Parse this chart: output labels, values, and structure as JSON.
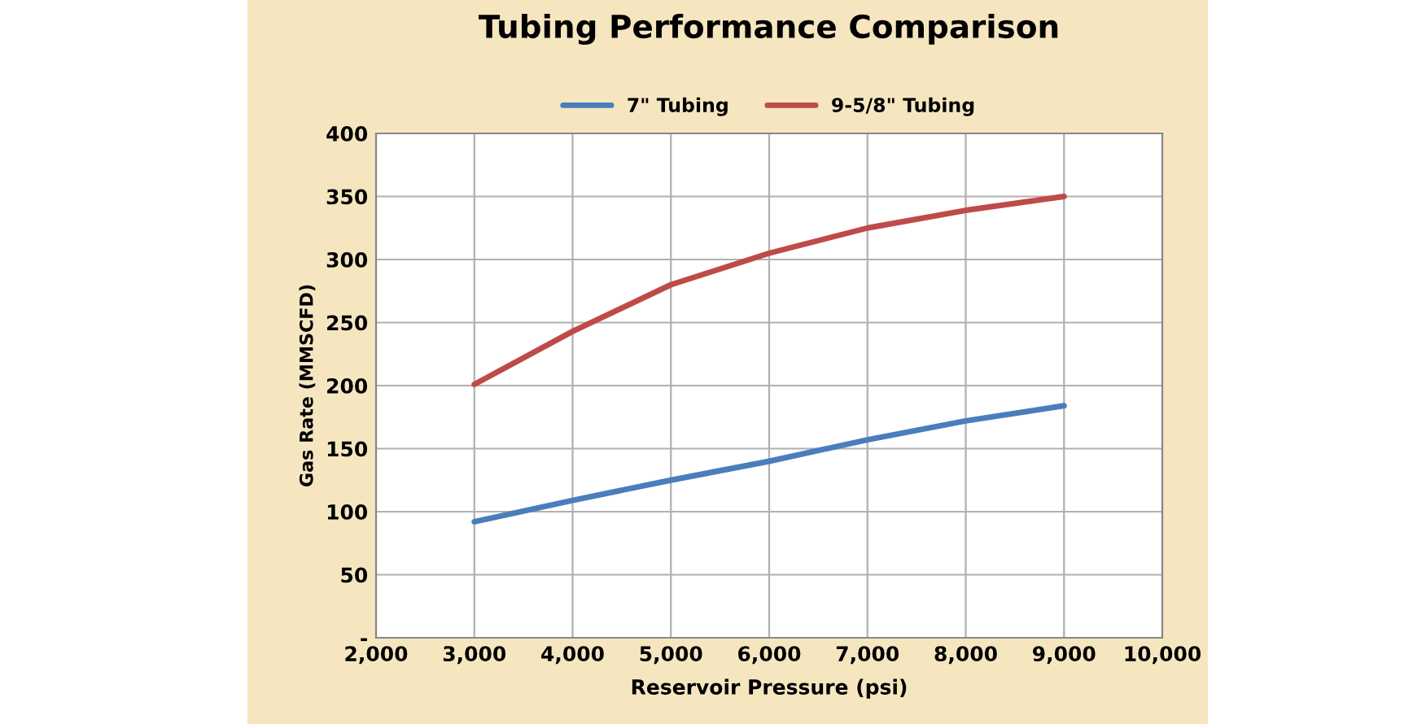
{
  "chart_data": {
    "type": "line",
    "title": "Tubing Performance Comparison",
    "xlabel": "Reservoir Pressure (psi)",
    "ylabel": "Gas Rate (MMSCFD)",
    "x": [
      3000,
      4000,
      5000,
      6000,
      7000,
      8000,
      9000
    ],
    "series": [
      {
        "name": "7\" Tubing",
        "color": "#4a7ebb",
        "values": [
          92,
          109,
          125,
          140,
          157,
          172,
          184
        ]
      },
      {
        "name": "9-5/8\" Tubing",
        "color": "#be4b48",
        "values": [
          201,
          243,
          280,
          305,
          325,
          339,
          350
        ]
      }
    ],
    "xlim": [
      2000,
      10000
    ],
    "xticks": [
      {
        "value": 2000,
        "label": "2,000"
      },
      {
        "value": 3000,
        "label": "3,000"
      },
      {
        "value": 4000,
        "label": "4,000"
      },
      {
        "value": 5000,
        "label": "5,000"
      },
      {
        "value": 6000,
        "label": "6,000"
      },
      {
        "value": 7000,
        "label": "7,000"
      },
      {
        "value": 8000,
        "label": "8,000"
      },
      {
        "value": 9000,
        "label": "9,000"
      },
      {
        "value": 10000,
        "label": "10,000"
      }
    ],
    "ylim": [
      0,
      400
    ],
    "yticks": [
      {
        "value": 0,
        "label": "-"
      },
      50,
      100,
      150,
      200,
      250,
      300,
      350,
      400
    ],
    "grid": true,
    "legend": "top",
    "marker": "none",
    "line_style": "solid"
  }
}
